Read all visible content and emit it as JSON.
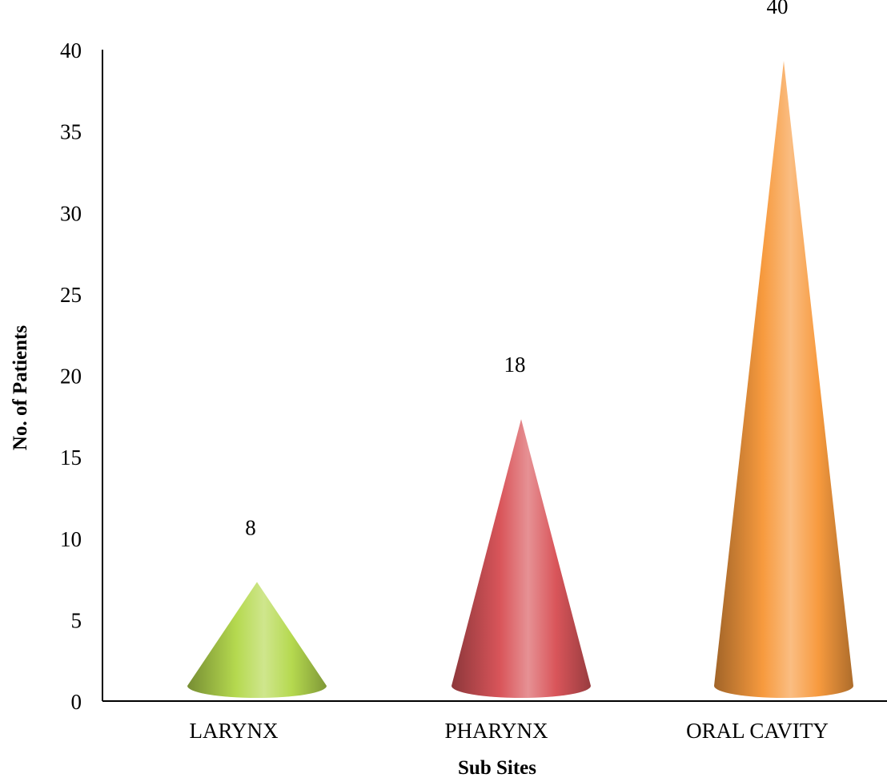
{
  "chart_data": {
    "type": "bar",
    "style": "3d-cone",
    "categories": [
      "LARYNX",
      "PHARYNX",
      "ORAL CAVITY"
    ],
    "values": [
      8,
      18,
      40
    ],
    "data_labels": [
      "8",
      "18",
      "40"
    ],
    "colors": [
      "#b5d94f",
      "#d9555a",
      "#f79a3e"
    ],
    "xlabel": "Sub Sites",
    "ylabel": "No. of Patients",
    "ylim": [
      0,
      40
    ],
    "yticks": [
      0,
      5,
      10,
      15,
      20,
      25,
      30,
      35,
      40
    ],
    "grid": false,
    "legend": "none"
  }
}
